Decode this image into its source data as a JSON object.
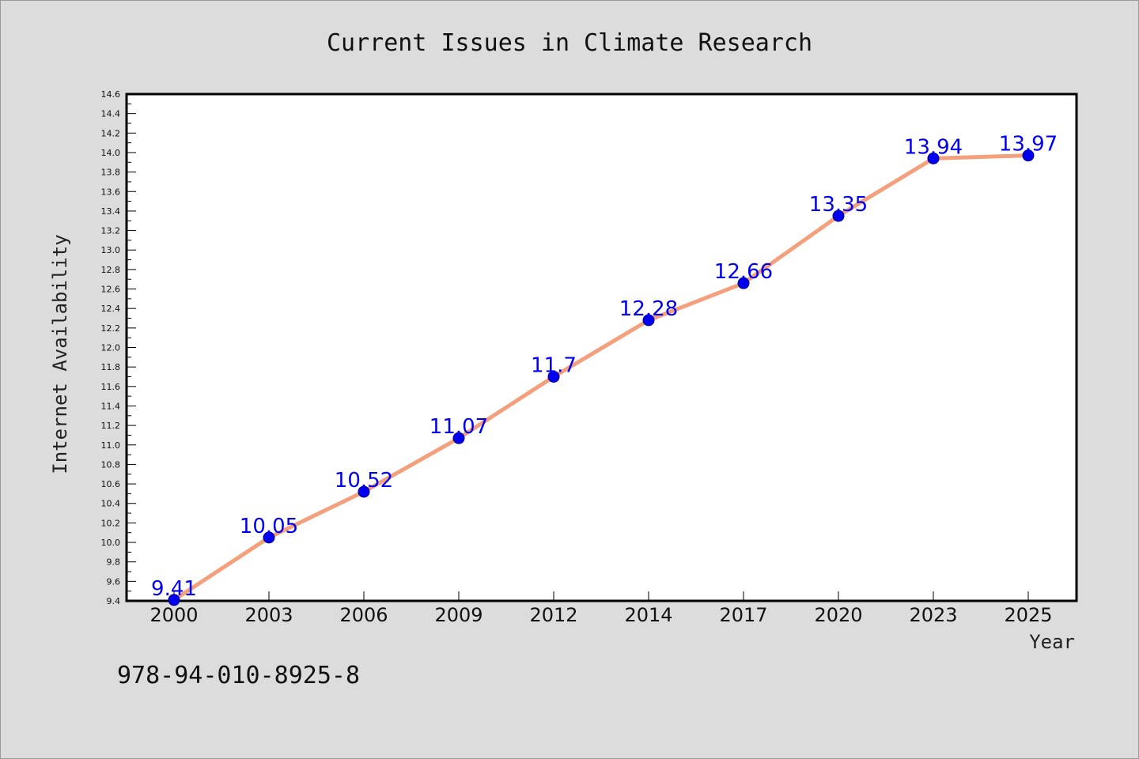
{
  "chart_data": {
    "type": "line",
    "title": "Current Issues in Climate Research",
    "xlabel": "Year",
    "ylabel": "Internet Availability",
    "categories": [
      "2000",
      "2003",
      "2006",
      "2009",
      "2012",
      "2014",
      "2017",
      "2020",
      "2023",
      "2025"
    ],
    "series": [
      {
        "values": [
          9.41,
          10.05,
          10.52,
          11.07,
          11.7,
          12.28,
          12.66,
          13.35,
          13.94,
          13.97
        ],
        "labels": [
          "9.41",
          "10.05",
          "10.52",
          "11.07",
          "11.7",
          "12.28",
          "12.66",
          "13.35",
          "13.94",
          "13.97"
        ]
      }
    ],
    "ylim": [
      9.4,
      14.6
    ],
    "yticks": [
      "9.4",
      "9.6",
      "9.8",
      "10.0",
      "10.2",
      "10.4",
      "10.6",
      "10.8",
      "11.0",
      "11.2",
      "11.4",
      "11.6",
      "11.8",
      "12.0",
      "12.2",
      "12.4",
      "12.6",
      "12.8",
      "13.0",
      "13.2",
      "13.4",
      "13.6",
      "13.8",
      "14.0",
      "14.2",
      "14.4",
      "14.6"
    ],
    "grid": false,
    "legend": "none"
  },
  "footer": {
    "isbn": "978-94-010-8925-8"
  },
  "colors": {
    "background": "#dcdcdc",
    "plot_background": "#ffffff",
    "line": "#f4a07c",
    "marker": "#0000ee",
    "data_label": "#0000ee"
  }
}
